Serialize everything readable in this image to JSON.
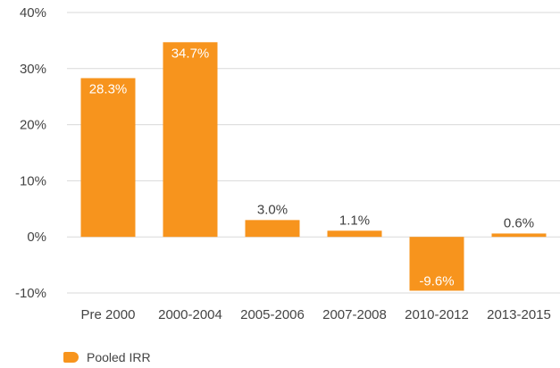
{
  "chart_data": {
    "type": "bar",
    "categories": [
      "Pre 2000",
      "2000-2004",
      "2005-2006",
      "2007-2008",
      "2010-2012",
      "2013-2015"
    ],
    "series": [
      {
        "name": "Pooled IRR",
        "values": [
          28.3,
          34.7,
          3.0,
          1.1,
          -9.6,
          0.6
        ],
        "data_labels": [
          "28.3%",
          "34.7%",
          "3.0%",
          "1.1%",
          "-9.6%",
          "0.6%"
        ]
      }
    ],
    "ylim": [
      -10,
      40
    ],
    "yticks": [
      -10,
      0,
      10,
      20,
      30,
      40
    ],
    "ytick_labels": [
      "-10%",
      "0%",
      "10%",
      "20%",
      "30%",
      "40%"
    ],
    "grid": true,
    "legend": "bottom-left",
    "colors": {
      "bar": "#F7941D",
      "grid": "#D9D9D9",
      "label_inside": "#FFFFFF",
      "label_outside": "#404040"
    }
  }
}
